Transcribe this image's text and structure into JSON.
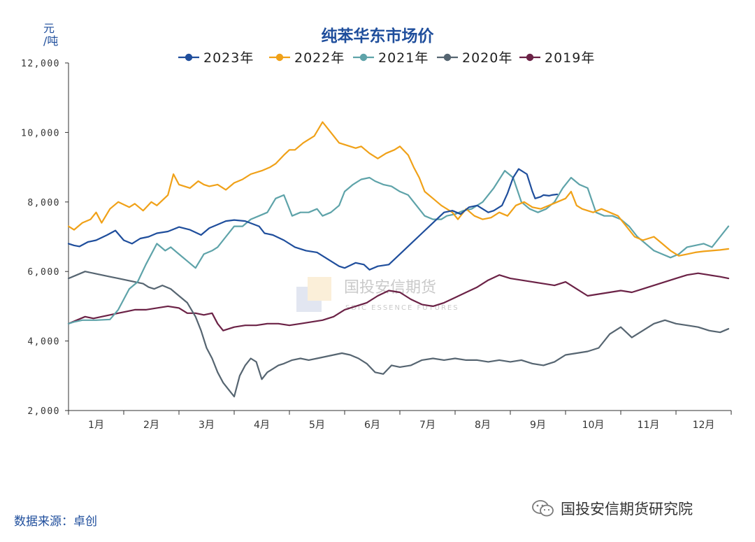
{
  "title": "纯苯华东市场价",
  "unit": {
    "line1": "元",
    "line2": "/吨"
  },
  "source": "数据来源：卓创",
  "brand": "国投安信期货研究院",
  "watermark": {
    "cn": "国投安信期货",
    "en": "SDIC ESSENCE FUTURES"
  },
  "chart_data": {
    "type": "line",
    "title": "纯苯华东市场价",
    "ylabel": "元/吨",
    "ylim": [
      2000,
      12000
    ],
    "yticks": [
      "2,000",
      "4,000",
      "6,000",
      "8,000",
      "10,000",
      "12,000"
    ],
    "ytick_values": [
      2000,
      4000,
      6000,
      8000,
      10000,
      12000
    ],
    "categories": [
      "1月",
      "2月",
      "3月",
      "4月",
      "5月",
      "6月",
      "7月",
      "8月",
      "9月",
      "10月",
      "11月",
      "12月"
    ],
    "legend_position": "top",
    "grid": false,
    "series": [
      {
        "name": "2023年",
        "color": "#1f4e9c",
        "x": [
          0.0,
          0.1,
          0.2,
          0.35,
          0.5,
          0.7,
          0.85,
          1.0,
          1.15,
          1.3,
          1.45,
          1.6,
          1.8,
          2.0,
          2.2,
          2.4,
          2.55,
          2.7,
          2.85,
          3.0,
          3.2,
          3.45,
          3.55,
          3.7,
          3.9,
          4.1,
          4.3,
          4.5,
          4.7,
          4.9,
          5.0,
          5.2,
          5.35,
          5.45,
          5.6,
          5.8,
          6.0,
          6.2,
          6.4,
          6.6,
          6.8,
          6.95,
          7.1,
          7.25,
          7.4,
          7.6,
          7.7,
          7.85,
          7.95,
          8.05,
          8.15,
          8.3,
          8.4,
          8.45,
          8.55,
          8.6,
          8.7,
          8.75,
          8.85
        ],
        "y": [
          6800,
          6750,
          6720,
          6850,
          6900,
          7050,
          7180,
          6900,
          6800,
          6950,
          7000,
          7100,
          7150,
          7280,
          7200,
          7050,
          7250,
          7350,
          7450,
          7480,
          7450,
          7300,
          7100,
          7050,
          6900,
          6700,
          6600,
          6550,
          6350,
          6150,
          6100,
          6250,
          6200,
          6050,
          6150,
          6200,
          6500,
          6800,
          7100,
          7400,
          7700,
          7750,
          7650,
          7850,
          7900,
          7700,
          7750,
          7900,
          8250,
          8700,
          8950,
          8800,
          8300,
          8100,
          8150,
          8200,
          8180,
          8200,
          8220
        ]
      },
      {
        "name": "2022年",
        "color": "#f0a118",
        "x": [
          0.0,
          0.1,
          0.25,
          0.4,
          0.5,
          0.6,
          0.75,
          0.9,
          1.1,
          1.2,
          1.35,
          1.5,
          1.6,
          1.8,
          1.9,
          2.0,
          2.2,
          2.35,
          2.45,
          2.55,
          2.7,
          2.85,
          3.0,
          3.15,
          3.3,
          3.5,
          3.65,
          3.75,
          3.9,
          4.0,
          4.1,
          4.25,
          4.45,
          4.6,
          4.75,
          4.9,
          5.0,
          5.1,
          5.2,
          5.3,
          5.45,
          5.6,
          5.75,
          5.9,
          6.0,
          6.15,
          6.25,
          6.35,
          6.45,
          6.6,
          6.75,
          6.95,
          7.05,
          7.2,
          7.35,
          7.5,
          7.65,
          7.8,
          7.95,
          8.1,
          8.25,
          8.4,
          8.55,
          8.7,
          8.85,
          9.0,
          9.1,
          9.2,
          9.3,
          9.5,
          9.65,
          9.8,
          9.95,
          10.1,
          10.25,
          10.4,
          10.5,
          10.6,
          10.75,
          10.9,
          11.05,
          11.2,
          11.35,
          11.5,
          11.65,
          11.8,
          11.95
        ],
        "y": [
          7300,
          7200,
          7400,
          7500,
          7700,
          7400,
          7800,
          8000,
          7850,
          7950,
          7750,
          8000,
          7900,
          8200,
          8800,
          8500,
          8400,
          8600,
          8500,
          8450,
          8500,
          8350,
          8550,
          8650,
          8800,
          8900,
          9000,
          9100,
          9350,
          9500,
          9500,
          9700,
          9900,
          10300,
          10000,
          9700,
          9650,
          9600,
          9550,
          9600,
          9400,
          9250,
          9400,
          9500,
          9600,
          9350,
          9000,
          8700,
          8300,
          8100,
          7900,
          7700,
          7500,
          7800,
          7600,
          7500,
          7550,
          7700,
          7600,
          7900,
          8000,
          7850,
          7800,
          7900,
          8000,
          8100,
          8300,
          7900,
          7800,
          7700,
          7800,
          7700,
          7600,
          7300,
          7000,
          6900,
          6950,
          7000,
          6800,
          6600,
          6450,
          6500,
          6550,
          6580,
          6600,
          6620,
          6650
        ]
      },
      {
        "name": "2021年",
        "color": "#5ea3a9",
        "x": [
          0.0,
          0.1,
          0.25,
          0.5,
          0.75,
          0.9,
          1.0,
          1.1,
          1.25,
          1.4,
          1.6,
          1.75,
          1.85,
          2.0,
          2.15,
          2.3,
          2.45,
          2.6,
          2.7,
          2.85,
          3.0,
          3.15,
          3.3,
          3.45,
          3.6,
          3.75,
          3.9,
          4.05,
          4.2,
          4.35,
          4.5,
          4.6,
          4.75,
          4.9,
          5.0,
          5.15,
          5.3,
          5.45,
          5.55,
          5.7,
          5.85,
          6.0,
          6.15,
          6.3,
          6.45,
          6.6,
          6.75,
          6.85,
          7.0,
          7.15,
          7.3,
          7.5,
          7.7,
          7.9,
          8.05,
          8.2,
          8.35,
          8.5,
          8.65,
          8.8,
          8.95,
          9.1,
          9.25,
          9.4,
          9.55,
          9.7,
          9.85,
          10.0,
          10.15,
          10.3,
          10.45,
          10.6,
          10.75,
          10.9,
          11.05,
          11.2,
          11.35,
          11.5,
          11.65,
          11.8,
          11.95
        ],
        "y": [
          4500,
          4550,
          4600,
          4600,
          4620,
          4900,
          5200,
          5500,
          5700,
          6200,
          6800,
          6600,
          6700,
          6500,
          6300,
          6100,
          6500,
          6600,
          6700,
          7000,
          7300,
          7300,
          7500,
          7600,
          7700,
          8100,
          8200,
          7600,
          7700,
          7700,
          7800,
          7600,
          7700,
          7900,
          8300,
          8500,
          8650,
          8700,
          8600,
          8500,
          8450,
          8300,
          8200,
          7900,
          7600,
          7500,
          7500,
          7600,
          7650,
          7750,
          7800,
          8000,
          8400,
          8900,
          8700,
          8000,
          7800,
          7700,
          7800,
          8000,
          8400,
          8700,
          8500,
          8400,
          7700,
          7600,
          7600,
          7500,
          7300,
          7000,
          6800,
          6600,
          6500,
          6400,
          6500,
          6700,
          6750,
          6800,
          6700,
          7000,
          7300
        ]
      },
      {
        "name": "2020年",
        "color": "#566571",
        "x": [
          0.0,
          0.15,
          0.3,
          0.45,
          0.6,
          0.75,
          0.9,
          1.05,
          1.2,
          1.35,
          1.45,
          1.55,
          1.7,
          1.85,
          2.0,
          2.15,
          2.3,
          2.4,
          2.5,
          2.6,
          2.7,
          2.8,
          2.9,
          3.0,
          3.1,
          3.2,
          3.3,
          3.4,
          3.5,
          3.6,
          3.7,
          3.8,
          3.9,
          4.05,
          4.2,
          4.35,
          4.5,
          4.65,
          4.8,
          4.95,
          5.1,
          5.25,
          5.4,
          5.55,
          5.7,
          5.85,
          6.0,
          6.2,
          6.4,
          6.6,
          6.8,
          7.0,
          7.2,
          7.4,
          7.6,
          7.8,
          8.0,
          8.2,
          8.4,
          8.6,
          8.8,
          9.0,
          9.2,
          9.4,
          9.6,
          9.8,
          10.0,
          10.2,
          10.4,
          10.6,
          10.8,
          11.0,
          11.2,
          11.4,
          11.6,
          11.8,
          11.95
        ],
        "y": [
          5800,
          5900,
          6000,
          5950,
          5900,
          5850,
          5800,
          5750,
          5700,
          5650,
          5550,
          5500,
          5600,
          5500,
          5300,
          5100,
          4700,
          4300,
          3800,
          3500,
          3100,
          2800,
          2600,
          2400,
          3000,
          3300,
          3500,
          3400,
          2900,
          3100,
          3200,
          3300,
          3350,
          3450,
          3500,
          3450,
          3500,
          3550,
          3600,
          3650,
          3600,
          3500,
          3350,
          3100,
          3050,
          3300,
          3250,
          3300,
          3450,
          3500,
          3450,
          3500,
          3450,
          3450,
          3400,
          3450,
          3400,
          3450,
          3350,
          3300,
          3400,
          3600,
          3650,
          3700,
          3800,
          4200,
          4400,
          4100,
          4300,
          4500,
          4600,
          4500,
          4450,
          4400,
          4300,
          4250,
          4350
        ]
      },
      {
        "name": "2019年",
        "color": "#6b2246",
        "x": [
          0.0,
          0.15,
          0.3,
          0.45,
          0.6,
          0.75,
          0.9,
          1.05,
          1.2,
          1.4,
          1.6,
          1.8,
          2.0,
          2.15,
          2.3,
          2.45,
          2.6,
          2.7,
          2.8,
          2.9,
          3.0,
          3.2,
          3.4,
          3.6,
          3.8,
          4.0,
          4.2,
          4.4,
          4.6,
          4.8,
          5.0,
          5.2,
          5.4,
          5.6,
          5.8,
          6.0,
          6.2,
          6.4,
          6.6,
          6.8,
          7.0,
          7.2,
          7.4,
          7.6,
          7.8,
          8.0,
          8.2,
          8.4,
          8.6,
          8.8,
          9.0,
          9.2,
          9.4,
          9.6,
          9.8,
          10.0,
          10.2,
          10.4,
          10.6,
          10.8,
          11.0,
          11.2,
          11.4,
          11.6,
          11.8,
          11.95
        ],
        "y": [
          4500,
          4600,
          4700,
          4650,
          4700,
          4750,
          4800,
          4850,
          4900,
          4900,
          4950,
          5000,
          4950,
          4800,
          4800,
          4750,
          4800,
          4500,
          4300,
          4350,
          4400,
          4450,
          4450,
          4500,
          4500,
          4450,
          4500,
          4550,
          4600,
          4700,
          4900,
          5000,
          5100,
          5300,
          5450,
          5400,
          5200,
          5050,
          5000,
          5100,
          5250,
          5400,
          5550,
          5750,
          5900,
          5800,
          5750,
          5700,
          5650,
          5600,
          5700,
          5500,
          5300,
          5350,
          5400,
          5450,
          5400,
          5500,
          5600,
          5700,
          5800,
          5900,
          5950,
          5900,
          5850,
          5800
        ]
      }
    ]
  }
}
